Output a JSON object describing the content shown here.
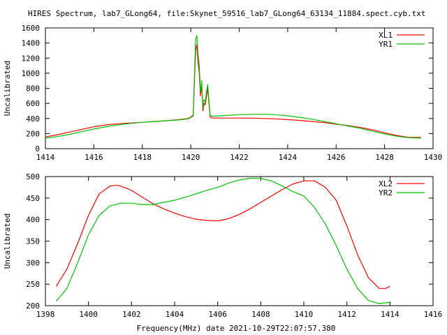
{
  "page": {
    "title": "HIRES Spectrum, lab7_GLong64, file:Skynet_59516_lab7_GLong64_63134_11884.spect.cyb.txt",
    "xlabel": "Frequency(MHz) date 2021-10-29T22:07:57.380"
  },
  "chart_data": [
    {
      "type": "line",
      "title": "HIRES Spectrum, lab7_GLong64, file:Skynet_59516_lab7_GLong64_63134_11884.spect.cyb.txt",
      "xlabel": "",
      "ylabel": "Uncalibrated",
      "xlim": [
        1414,
        1430
      ],
      "ylim": [
        0,
        1600
      ],
      "xticks": [
        1414,
        1416,
        1418,
        1420,
        1422,
        1424,
        1426,
        1428,
        1430
      ],
      "yticks": [
        0,
        200,
        400,
        600,
        800,
        1000,
        1200,
        1400,
        1600
      ],
      "grid": false,
      "legend": "top-right",
      "series": [
        {
          "name": "XL1",
          "color": "#ff0000",
          "x": [
            1414.0,
            1414.5,
            1415.0,
            1415.5,
            1416.0,
            1416.5,
            1417.0,
            1417.5,
            1418.0,
            1418.5,
            1419.0,
            1419.5,
            1419.9,
            1420.1,
            1420.2,
            1420.25,
            1420.3,
            1420.35,
            1420.4,
            1420.45,
            1420.5,
            1420.55,
            1420.6,
            1420.65,
            1420.7,
            1420.75,
            1420.8,
            1420.9,
            1421.0,
            1421.5,
            1422.0,
            1422.5,
            1423.0,
            1423.5,
            1424.0,
            1424.5,
            1425.0,
            1425.5,
            1426.0,
            1426.5,
            1427.0,
            1427.5,
            1428.0,
            1428.5,
            1429.0,
            1429.5
          ],
          "y": [
            155,
            185,
            220,
            255,
            290,
            315,
            330,
            340,
            350,
            360,
            370,
            385,
            400,
            440,
            1300,
            1380,
            1150,
            1000,
            700,
            850,
            500,
            600,
            580,
            700,
            800,
            600,
            420,
            405,
            405,
            405,
            405,
            405,
            400,
            395,
            385,
            375,
            360,
            345,
            325,
            305,
            280,
            250,
            210,
            175,
            150,
            150
          ]
        },
        {
          "name": "YR1",
          "color": "#00c000",
          "x": [
            1414.0,
            1414.5,
            1415.0,
            1415.5,
            1416.0,
            1416.5,
            1417.0,
            1417.5,
            1418.0,
            1418.5,
            1419.0,
            1419.5,
            1419.9,
            1420.1,
            1420.2,
            1420.25,
            1420.3,
            1420.35,
            1420.4,
            1420.45,
            1420.5,
            1420.55,
            1420.6,
            1420.65,
            1420.7,
            1420.75,
            1420.8,
            1420.9,
            1421.0,
            1421.5,
            1422.0,
            1422.5,
            1423.0,
            1423.5,
            1424.0,
            1424.5,
            1425.0,
            1425.5,
            1426.0,
            1426.5,
            1427.0,
            1427.5,
            1428.0,
            1428.5,
            1429.0,
            1429.5
          ],
          "y": [
            140,
            160,
            190,
            225,
            260,
            290,
            315,
            335,
            350,
            360,
            370,
            380,
            395,
            430,
            1450,
            1500,
            1250,
            1100,
            750,
            900,
            540,
            650,
            620,
            760,
            850,
            640,
            440,
            430,
            430,
            440,
            450,
            455,
            455,
            450,
            435,
            415,
            390,
            360,
            330,
            300,
            270,
            230,
            195,
            165,
            145,
            140
          ]
        }
      ]
    },
    {
      "type": "line",
      "title": "",
      "xlabel": "Frequency(MHz) date 2021-10-29T22:07:57.380",
      "ylabel": "Uncalibrated",
      "xlim": [
        1398,
        1416
      ],
      "ylim": [
        200,
        500
      ],
      "xticks": [
        1398,
        1400,
        1402,
        1404,
        1406,
        1408,
        1410,
        1412,
        1414,
        1416
      ],
      "yticks": [
        200,
        250,
        300,
        350,
        400,
        450,
        500
      ],
      "grid": false,
      "legend": "top-right",
      "series": [
        {
          "name": "XL2",
          "color": "#ff0000",
          "x": [
            1398.5,
            1399.0,
            1399.5,
            1400.0,
            1400.5,
            1401.0,
            1401.3,
            1401.5,
            1402.0,
            1402.5,
            1403.0,
            1403.5,
            1404.0,
            1404.5,
            1405.0,
            1405.5,
            1406.0,
            1406.5,
            1407.0,
            1407.5,
            1408.0,
            1408.5,
            1409.0,
            1409.5,
            1410.0,
            1410.5,
            1411.0,
            1411.5,
            1412.0,
            1412.5,
            1413.0,
            1413.5,
            1413.8,
            1414.0
          ],
          "y": [
            245,
            285,
            345,
            410,
            460,
            478,
            480,
            478,
            468,
            452,
            437,
            425,
            415,
            407,
            401,
            398,
            397,
            402,
            412,
            425,
            440,
            455,
            470,
            483,
            490,
            490,
            475,
            445,
            385,
            318,
            265,
            240,
            240,
            245
          ]
        },
        {
          "name": "YR2",
          "color": "#00c000",
          "x": [
            1398.5,
            1399.0,
            1399.5,
            1400.0,
            1400.5,
            1401.0,
            1401.5,
            1402.0,
            1402.5,
            1403.0,
            1403.5,
            1404.0,
            1404.5,
            1405.0,
            1405.5,
            1406.0,
            1406.5,
            1407.0,
            1407.5,
            1408.0,
            1408.5,
            1409.0,
            1409.5,
            1410.0,
            1410.5,
            1411.0,
            1411.5,
            1412.0,
            1412.5,
            1413.0,
            1413.5,
            1414.0
          ],
          "y": [
            210,
            240,
            300,
            365,
            410,
            432,
            438,
            438,
            435,
            435,
            440,
            445,
            452,
            460,
            468,
            475,
            485,
            492,
            496,
            496,
            490,
            478,
            465,
            455,
            428,
            390,
            340,
            285,
            240,
            212,
            205,
            208
          ]
        }
      ]
    }
  ]
}
